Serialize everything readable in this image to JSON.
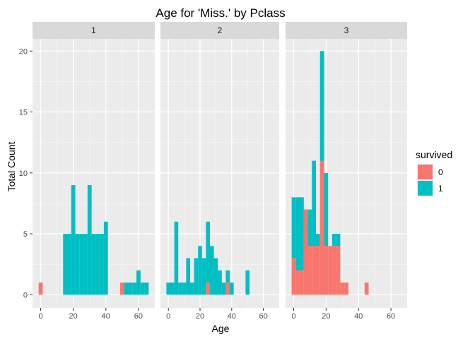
{
  "chart_data": {
    "type": "bar",
    "title": "Age for 'Miss.' by Pclass",
    "xlabel": "Age",
    "ylabel": "Total Count",
    "xlim": [
      -5,
      70
    ],
    "ylim": [
      -1.08,
      21
    ],
    "x_ticks": [
      0,
      20,
      40,
      60
    ],
    "y_ticks": [
      0,
      5,
      10,
      15,
      20
    ],
    "bin_width": 2.5,
    "grid": true,
    "stacked": true,
    "legend": {
      "title": "survived",
      "placement": "right",
      "entries": [
        {
          "label": "0",
          "color": "#F8766D"
        },
        {
          "label": "1",
          "color": "#00BFC4"
        }
      ]
    },
    "series_colors": {
      "0": "#F8766D",
      "1": "#00BFC4"
    },
    "panels": [
      {
        "label": "1",
        "bins": [
          {
            "x": 0,
            "s0": 1,
            "s1": 0
          },
          {
            "x": 15,
            "s0": 0,
            "s1": 5
          },
          {
            "x": 17.5,
            "s0": 0,
            "s1": 5
          },
          {
            "x": 20,
            "s0": 0,
            "s1": 9
          },
          {
            "x": 22.5,
            "s0": 0,
            "s1": 5
          },
          {
            "x": 25,
            "s0": 0,
            "s1": 5
          },
          {
            "x": 27.5,
            "s0": 0,
            "s1": 5
          },
          {
            "x": 30,
            "s0": 0,
            "s1": 9
          },
          {
            "x": 32.5,
            "s0": 0,
            "s1": 5
          },
          {
            "x": 35,
            "s0": 0,
            "s1": 5
          },
          {
            "x": 37.5,
            "s0": 0,
            "s1": 5
          },
          {
            "x": 40,
            "s0": 0,
            "s1": 6
          },
          {
            "x": 50,
            "s0": 1,
            "s1": 0
          },
          {
            "x": 52.5,
            "s0": 0,
            "s1": 1
          },
          {
            "x": 55,
            "s0": 0,
            "s1": 1
          },
          {
            "x": 57.5,
            "s0": 0,
            "s1": 1
          },
          {
            "x": 60,
            "s0": 0,
            "s1": 2
          },
          {
            "x": 62.5,
            "s0": 0,
            "s1": 1
          },
          {
            "x": 65,
            "s0": 0,
            "s1": 1
          }
        ]
      },
      {
        "label": "2",
        "bins": [
          {
            "x": 0,
            "s0": 0,
            "s1": 1
          },
          {
            "x": 2.5,
            "s0": 0,
            "s1": 1
          },
          {
            "x": 5,
            "s0": 0,
            "s1": 6
          },
          {
            "x": 7.5,
            "s0": 0,
            "s1": 1
          },
          {
            "x": 10,
            "s0": 0,
            "s1": 1
          },
          {
            "x": 12.5,
            "s0": 0,
            "s1": 3
          },
          {
            "x": 15,
            "s0": 0,
            "s1": 1
          },
          {
            "x": 17.5,
            "s0": 0,
            "s1": 3
          },
          {
            "x": 20,
            "s0": 0,
            "s1": 4
          },
          {
            "x": 22.5,
            "s0": 0,
            "s1": 3
          },
          {
            "x": 25,
            "s0": 1,
            "s1": 5
          },
          {
            "x": 27.5,
            "s0": 0,
            "s1": 4
          },
          {
            "x": 30,
            "s0": 0,
            "s1": 3
          },
          {
            "x": 32.5,
            "s0": 0,
            "s1": 2
          },
          {
            "x": 35,
            "s0": 0,
            "s1": 1
          },
          {
            "x": 37.5,
            "s0": 1,
            "s1": 1
          },
          {
            "x": 40,
            "s0": 0,
            "s1": 1
          },
          {
            "x": 50,
            "s0": 0,
            "s1": 2
          }
        ]
      },
      {
        "label": "3",
        "bins": [
          {
            "x": 0,
            "s0": 3,
            "s1": 5
          },
          {
            "x": 2.5,
            "s0": 2,
            "s1": 6
          },
          {
            "x": 5,
            "s0": 2,
            "s1": 6
          },
          {
            "x": 7.5,
            "s0": 7,
            "s1": 0
          },
          {
            "x": 10,
            "s0": 4,
            "s1": 3
          },
          {
            "x": 12.5,
            "s0": 4,
            "s1": 7
          },
          {
            "x": 15,
            "s0": 4,
            "s1": 1
          },
          {
            "x": 17.5,
            "s0": 11,
            "s1": 9
          },
          {
            "x": 20,
            "s0": 4,
            "s1": 6
          },
          {
            "x": 22.5,
            "s0": 4,
            "s1": 0
          },
          {
            "x": 25,
            "s0": 4,
            "s1": 1
          },
          {
            "x": 27.5,
            "s0": 4,
            "s1": 1
          },
          {
            "x": 30,
            "s0": 1,
            "s1": 0
          },
          {
            "x": 32.5,
            "s0": 1,
            "s1": 0
          },
          {
            "x": 45,
            "s0": 1,
            "s1": 0
          }
        ]
      }
    ]
  }
}
